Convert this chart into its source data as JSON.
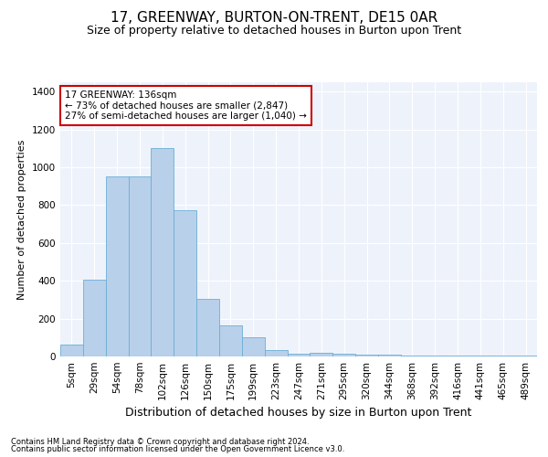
{
  "title": "17, GREENWAY, BURTON-ON-TRENT, DE15 0AR",
  "subtitle": "Size of property relative to detached houses in Burton upon Trent",
  "xlabel": "Distribution of detached houses by size in Burton upon Trent",
  "ylabel": "Number of detached properties",
  "footnote1": "Contains HM Land Registry data © Crown copyright and database right 2024.",
  "footnote2": "Contains public sector information licensed under the Open Government Licence v3.0.",
  "bar_color": "#b8d0ea",
  "bar_edge_color": "#6baed6",
  "background_color": "#eef3fb",
  "grid_color": "#ffffff",
  "annotation_box_color": "#cc0000",
  "annotation_line1": "17 GREENWAY: 136sqm",
  "annotation_line2": "← 73% of detached houses are smaller (2,847)",
  "annotation_line3": "27% of semi-detached houses are larger (1,040) →",
  "categories": [
    "5sqm",
    "29sqm",
    "54sqm",
    "78sqm",
    "102sqm",
    "126sqm",
    "150sqm",
    "175sqm",
    "199sqm",
    "223sqm",
    "247sqm",
    "271sqm",
    "295sqm",
    "320sqm",
    "344sqm",
    "368sqm",
    "392sqm",
    "416sqm",
    "441sqm",
    "465sqm",
    "489sqm"
  ],
  "values": [
    65,
    405,
    950,
    950,
    1100,
    775,
    305,
    165,
    100,
    35,
    15,
    20,
    15,
    10,
    10,
    5,
    3,
    3,
    3,
    3,
    3
  ],
  "ylim": [
    0,
    1450
  ],
  "yticks": [
    0,
    200,
    400,
    600,
    800,
    1000,
    1200,
    1400
  ],
  "title_fontsize": 11,
  "subtitle_fontsize": 9,
  "xlabel_fontsize": 9,
  "ylabel_fontsize": 8,
  "tick_fontsize": 7.5,
  "annot_fontsize": 7.5,
  "footnote_fontsize": 6
}
